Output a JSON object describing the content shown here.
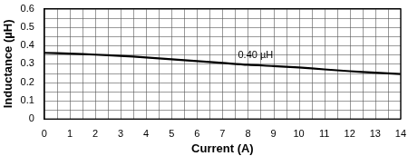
{
  "chart_data": {
    "type": "line",
    "x_label": "Current (A)",
    "y_label": "Inductance (µH)",
    "x": [
      0,
      1,
      2,
      3,
      4,
      5,
      6,
      7,
      8,
      9,
      10,
      11,
      12,
      13,
      14
    ],
    "values": [
      0.36,
      0.356,
      0.35,
      0.343,
      0.335,
      0.325,
      0.315,
      0.305,
      0.295,
      0.288,
      0.28,
      0.27,
      0.26,
      0.252,
      0.245
    ],
    "color": "#000000",
    "xlim": [
      0,
      14
    ],
    "xticks": [
      0,
      1,
      2,
      3,
      4,
      5,
      6,
      7,
      8,
      9,
      10,
      11,
      12,
      13,
      14
    ],
    "ylim": [
      0,
      0.6
    ],
    "yticks": [
      0,
      0.1,
      0.2,
      0.3,
      0.4,
      0.5,
      0.6
    ],
    "grid": true,
    "annotations": [
      {
        "text": "0.40 µH",
        "x": 8.3,
        "y": 0.32
      }
    ]
  }
}
